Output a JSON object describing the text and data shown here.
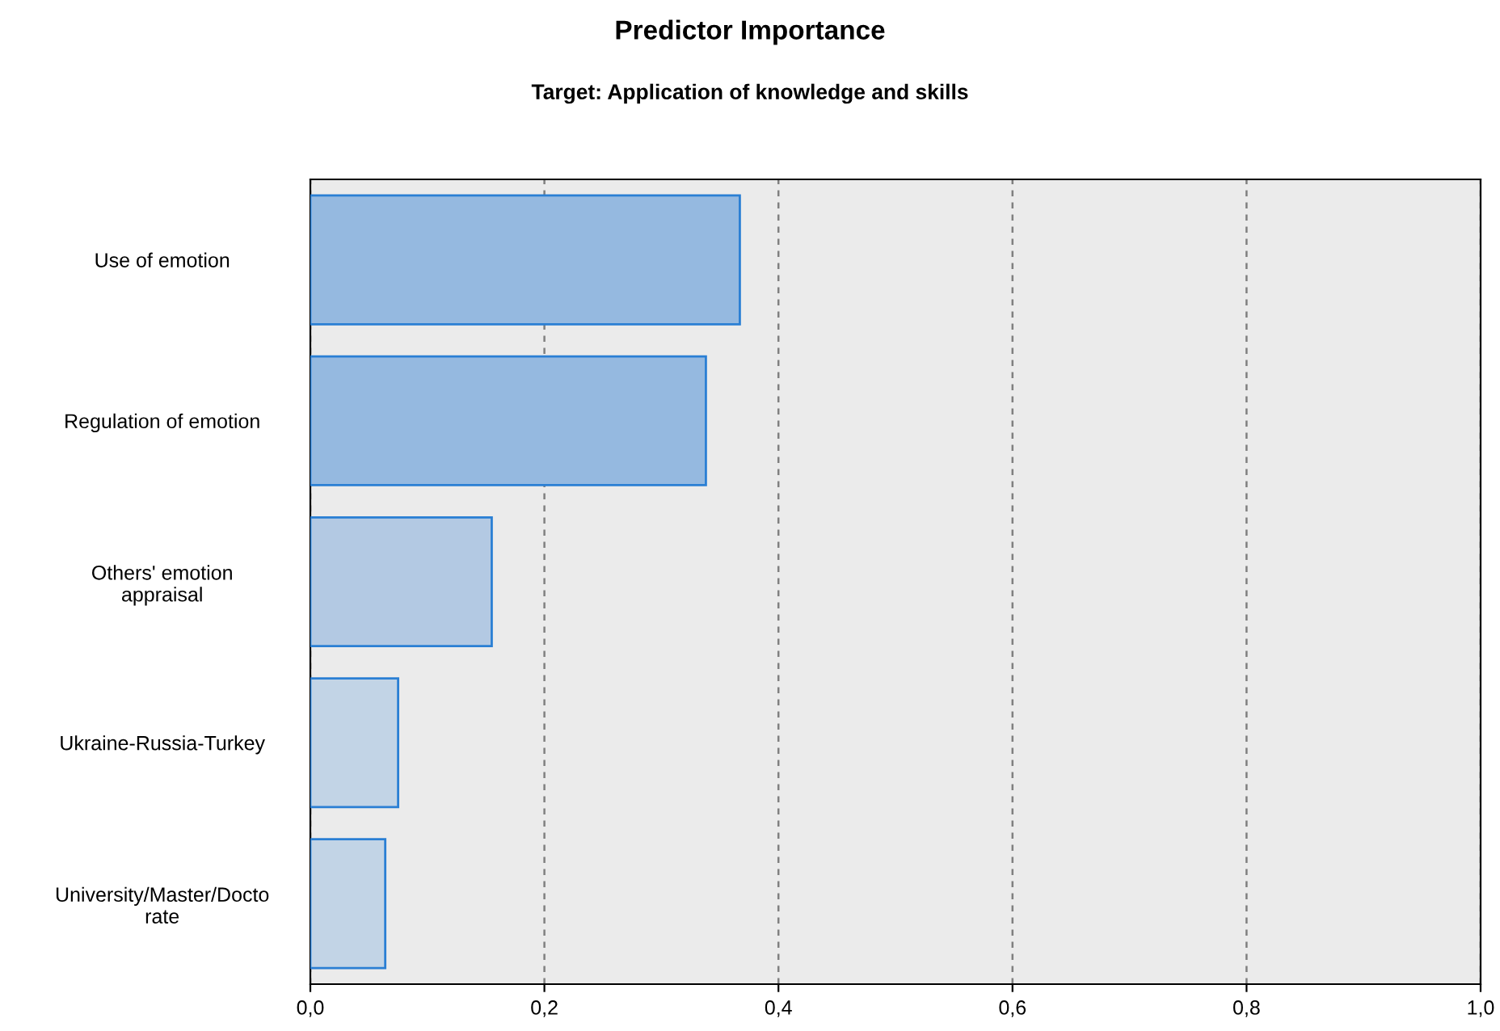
{
  "chart_data": {
    "type": "bar",
    "orientation": "horizontal",
    "title": "Predictor Importance",
    "subtitle": "Target: Application of knowledge and skills",
    "categories": [
      "Use of emotion",
      "Regulation of emotion",
      "Others' emotion\nappraisal",
      "Ukraine-Russia-Turkey",
      "University/Master/Docto\nrate"
    ],
    "values": [
      0.367,
      0.338,
      0.155,
      0.075,
      0.064
    ],
    "colors": [
      "#95b9e0",
      "#95b9e0",
      "#b3c9e3",
      "#c2d4e6",
      "#c2d4e6"
    ],
    "xlim": [
      0,
      1
    ],
    "xticks": [
      {
        "value": 0,
        "label": "0,0"
      },
      {
        "value": 0.2,
        "label": "0,2"
      },
      {
        "value": 0.4,
        "label": "0,4"
      },
      {
        "value": 0.6,
        "label": "0,6"
      },
      {
        "value": 0.8,
        "label": "0,8"
      },
      {
        "value": 1,
        "label": "1,0"
      }
    ],
    "grid": "x"
  }
}
